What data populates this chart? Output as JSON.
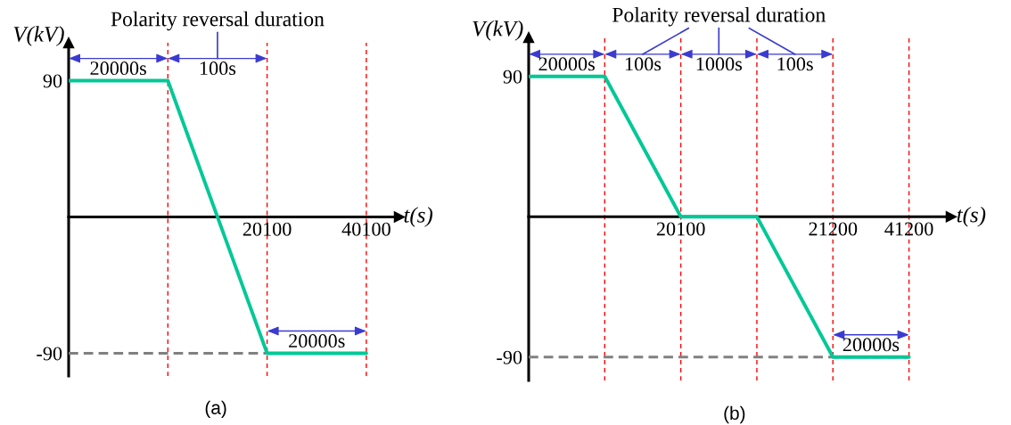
{
  "chart_data": [
    {
      "type": "line",
      "title": "(a)",
      "xlabel": "t(s)",
      "ylabel": "V(kV)",
      "categories": [
        null,
        null,
        "20100",
        "40100"
      ],
      "series": [
        {
          "color": "#00c896",
          "values": [
            90,
            90,
            -90,
            -90
          ]
        }
      ],
      "ylim": [
        -105,
        115
      ],
      "yticks": [
        -90,
        90
      ],
      "grid": "x",
      "ref_lines": [
        {
          "axis": "y",
          "value": -90,
          "color": "#808080",
          "line_style": "dashed"
        }
      ],
      "annotations": [
        "Polarity reversal duration",
        "20000s",
        "100s",
        "20000s"
      ]
    },
    {
      "type": "line",
      "title": "(b)",
      "xlabel": "t(s)",
      "ylabel": "V(kV)",
      "categories": [
        null,
        null,
        "20100",
        null,
        "21200",
        "41200"
      ],
      "series": [
        {
          "color": "#00c896",
          "values": [
            90,
            90,
            0,
            0,
            -90,
            -90
          ]
        }
      ],
      "ylim": [
        -105,
        115
      ],
      "yticks": [
        -90,
        90
      ],
      "grid": "x",
      "ref_lines": [
        {
          "axis": "y",
          "value": -90,
          "color": "#808080",
          "line_style": "dashed"
        }
      ],
      "annotations": [
        "Polarity reversal duration",
        "20000s",
        "100s",
        "1000s",
        "100s",
        "20000s"
      ]
    }
  ]
}
